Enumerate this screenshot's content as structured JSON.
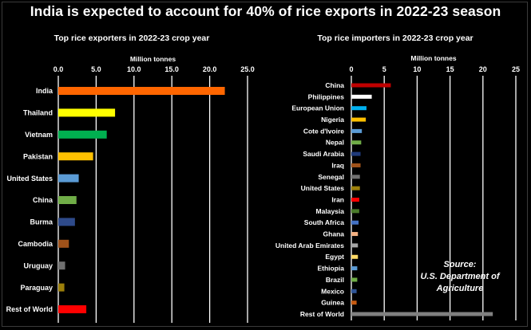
{
  "title": "India is expected to account for 40% of rice exports in 2022-23 season",
  "source_lines": [
    "Source:",
    "U.S. Department of",
    "Agriculture"
  ],
  "chart_data": [
    {
      "type": "bar",
      "orientation": "horizontal",
      "title": "Top rice exporters in 2022-23 crop year",
      "xlabel": "Million tonnes",
      "xlim": [
        0,
        25
      ],
      "tick_labels": [
        "0.0",
        "5.0",
        "10.0",
        "15.0",
        "20.0",
        "25.0"
      ],
      "grid": true,
      "categories": [
        "India",
        "Thailand",
        "Vietnam",
        "Pakistan",
        "United States",
        "China",
        "Burma",
        "Cambodia",
        "Uruguay",
        "Paraguay",
        "Rest of World"
      ],
      "values": [
        22.0,
        7.5,
        6.4,
        4.6,
        2.7,
        2.4,
        2.2,
        1.4,
        0.9,
        0.8,
        3.7
      ],
      "colors": [
        "#ff6600",
        "#ffff00",
        "#00b050",
        "#ffc000",
        "#5b9bd5",
        "#70ad47",
        "#2e4a8a",
        "#a0521a",
        "#707070",
        "#9c7f0a",
        "#ff0000"
      ]
    },
    {
      "type": "bar",
      "orientation": "horizontal",
      "title": "Top rice importers in 2022-23 crop year",
      "xlabel": "Million tonnes",
      "xlim": [
        0,
        25
      ],
      "tick_labels": [
        "0",
        "5",
        "10",
        "15",
        "20",
        "25"
      ],
      "grid": true,
      "categories": [
        "China",
        "Philippines",
        "European Union",
        "Nigeria",
        "Cote d'Ivoire",
        "Nepal",
        "Saudi Arabia",
        "Iraq",
        "Senegal",
        "United States",
        "Iran",
        "Malaysia",
        "South Africa",
        "Ghana",
        "United Arab Emirates",
        "Egypt",
        "Ethiopia",
        "Brazil",
        "Mexico",
        "Guinea",
        "Rest of World"
      ],
      "values": [
        6.0,
        3.1,
        2.3,
        2.2,
        1.6,
        1.5,
        1.4,
        1.4,
        1.3,
        1.3,
        1.2,
        1.2,
        1.1,
        1.0,
        1.0,
        1.0,
        0.9,
        0.9,
        0.8,
        0.8,
        21.5
      ],
      "colors": [
        "#c00000",
        "#ffffff",
        "#00b0f0",
        "#ffc000",
        "#5b9bd5",
        "#70ad47",
        "#1f3a7a",
        "#a0521a",
        "#707070",
        "#9c7f0a",
        "#ff0000",
        "#4a7a2a",
        "#4472c4",
        "#f4b183",
        "#a6a6a6",
        "#ffd966",
        "#5b9bd5",
        "#70ad47",
        "#2f5597",
        "#c55a11",
        "#808080"
      ]
    }
  ]
}
